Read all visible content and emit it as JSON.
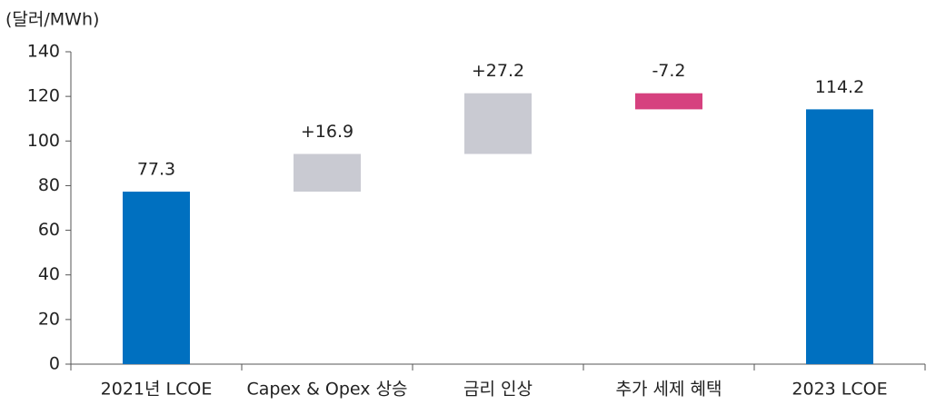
{
  "chart_data": {
    "type": "waterfall",
    "y_axis_label": "(달러/MWh)",
    "categories": [
      "2021년 LCOE",
      "Capex & Opex 상승",
      "금리 인상",
      "추가 세제 혜택",
      "2023 LCOE"
    ],
    "values": [
      77.3,
      16.9,
      27.2,
      -7.2,
      114.2
    ],
    "value_labels": [
      "77.3",
      "+16.9",
      "+27.2",
      "-7.2",
      "114.2"
    ],
    "colors": [
      "#0070c0",
      "#c9cad2",
      "#c9cad2",
      "#d6417f",
      "#0070c0"
    ],
    "ylim": [
      0,
      140
    ],
    "yticks": [
      0,
      20,
      40,
      60,
      80,
      100,
      120,
      140
    ],
    "grid": false
  }
}
